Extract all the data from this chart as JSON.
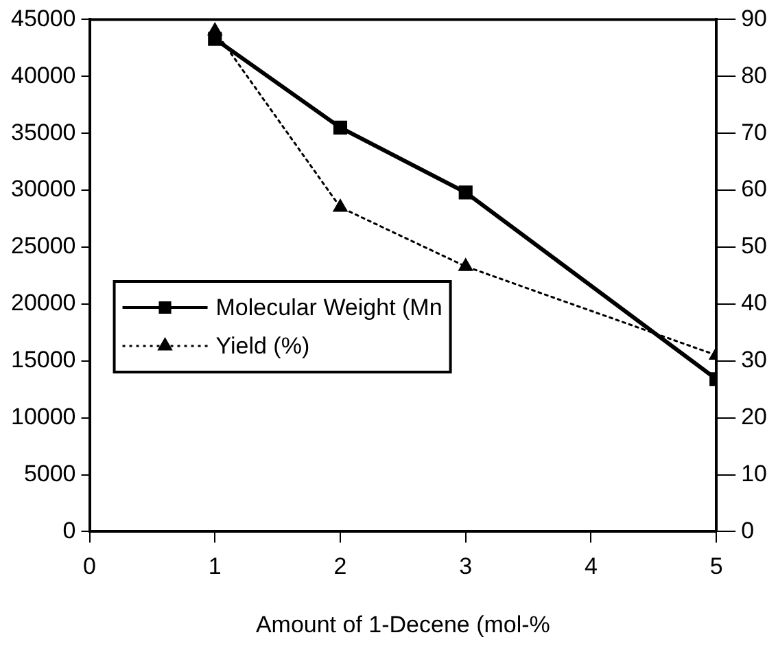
{
  "chart_data": {
    "type": "line",
    "xlabel": "Amount of 1-Decene (mol-%",
    "x": [
      1,
      2,
      3,
      5
    ],
    "series": [
      {
        "name": "Molecular Weight (Mn",
        "color": "#000000",
        "values": [
          43300,
          35500,
          29800,
          13400
        ],
        "marker": "square",
        "line_style": "solid"
      },
      {
        "name": "Yield (%)",
        "color": "#000000",
        "values": [
          88,
          57,
          46.6,
          31
        ],
        "axis": "y2",
        "marker": "triangle",
        "line_style": "dotted"
      }
    ],
    "xlim": [
      0,
      5
    ],
    "xticks": [
      0,
      1,
      2,
      3,
      4,
      5
    ],
    "ylim": [
      0,
      45000
    ],
    "yticks": [
      0,
      5000,
      10000,
      15000,
      20000,
      25000,
      30000,
      35000,
      40000,
      45000
    ],
    "y2lim": [
      0,
      90
    ],
    "y2ticks": [
      0,
      10,
      20,
      30,
      40,
      50,
      60,
      70,
      80,
      90
    ],
    "grid": false,
    "legend": "left"
  }
}
